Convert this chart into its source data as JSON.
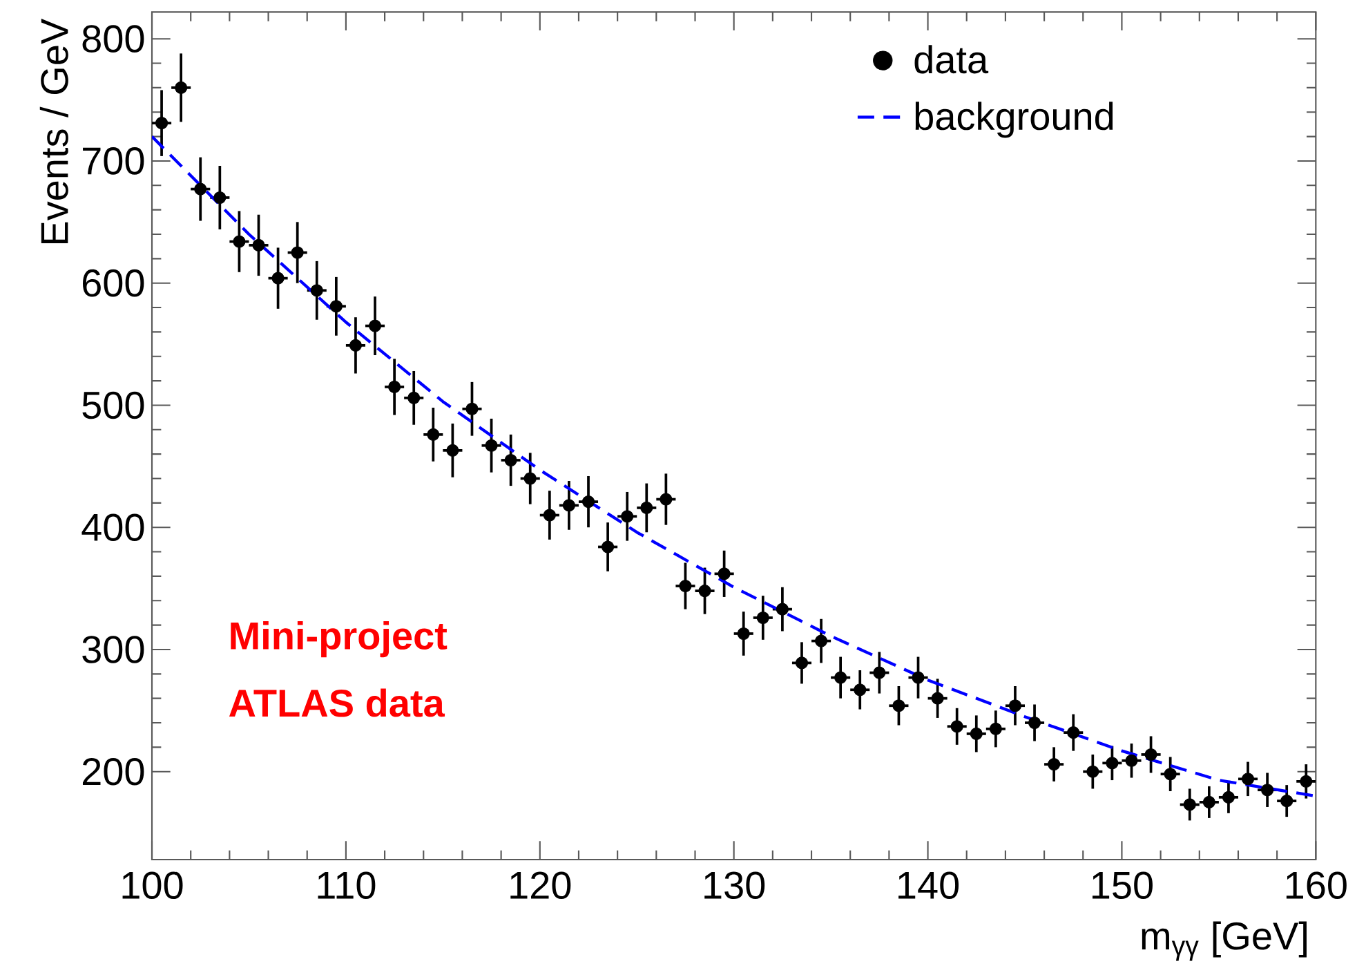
{
  "chart_data": {
    "type": "scatter",
    "xlabel": "m$_{γγ}$ [GeV]",
    "ylabel": "Events / GeV",
    "annotations": [
      "Mini-project",
      "ATLAS data"
    ],
    "xlim": [
      100,
      160
    ],
    "xticks": [
      100,
      110,
      120,
      130,
      140,
      150,
      160
    ],
    "ylim": [
      128,
      822
    ],
    "yticks": [
      200,
      300,
      400,
      500,
      600,
      700,
      800
    ],
    "grid": false,
    "legend": "top right",
    "series": [
      {
        "name": "data",
        "color": "#000000",
        "marker": "circle",
        "x": [
          100.5,
          101.5,
          102.5,
          103.5,
          104.5,
          105.5,
          106.5,
          107.5,
          108.5,
          109.5,
          110.5,
          111.5,
          112.5,
          113.5,
          114.5,
          115.5,
          116.5,
          117.5,
          118.5,
          119.5,
          120.5,
          121.5,
          122.5,
          123.5,
          124.5,
          125.5,
          126.5,
          127.5,
          128.5,
          129.5,
          130.5,
          131.5,
          132.5,
          133.5,
          134.5,
          135.5,
          136.5,
          137.5,
          138.5,
          139.5,
          140.5,
          141.5,
          142.5,
          143.5,
          144.5,
          145.5,
          146.5,
          147.5,
          148.5,
          149.5,
          150.5,
          151.5,
          152.5,
          153.5,
          154.5,
          155.5,
          156.5,
          157.5,
          158.5,
          159.5
        ],
        "values": [
          731,
          760,
          677,
          670,
          634,
          631,
          604,
          625,
          594,
          581,
          549,
          565,
          515,
          506,
          476,
          463,
          497,
          467,
          455,
          440,
          410,
          418,
          421,
          384,
          409,
          416,
          423,
          352,
          348,
          362,
          313,
          326,
          333,
          289,
          307,
          277,
          267,
          281,
          254,
          277,
          260,
          237,
          231,
          235,
          254,
          240,
          206,
          232,
          200,
          207,
          209,
          214,
          198,
          173,
          175,
          179,
          194,
          185,
          176,
          192
        ],
        "errors": [
          27,
          28,
          26,
          26,
          25,
          25,
          25,
          25,
          24,
          24,
          23,
          24,
          23,
          22,
          22,
          22,
          22,
          22,
          21,
          21,
          20,
          20,
          21,
          20,
          20,
          20,
          21,
          19,
          19,
          19,
          18,
          18,
          18,
          17,
          18,
          17,
          16,
          17,
          16,
          17,
          16,
          15,
          15,
          15,
          16,
          15,
          14,
          15,
          14,
          14,
          14,
          15,
          14,
          13,
          13,
          13,
          14,
          14,
          13,
          14
        ],
        "xerrors": [
          0.5,
          0.5,
          0.5,
          0.5,
          0.5,
          0.5,
          0.5,
          0.5,
          0.5,
          0.5,
          0.5,
          0.5,
          0.5,
          0.5,
          0.5,
          0.5,
          0.5,
          0.5,
          0.5,
          0.5,
          0.5,
          0.5,
          0.5,
          0.5,
          0.5,
          0.5,
          0.5,
          0.5,
          0.5,
          0.5,
          0.5,
          0.5,
          0.5,
          0.5,
          0.5,
          0.5,
          0.5,
          0.5,
          0.5,
          0.5,
          0.5,
          0.5,
          0.5,
          0.5,
          0.5,
          0.5,
          0.5,
          0.5,
          0.5,
          0.5,
          0.5,
          0.5,
          0.5,
          0.5,
          0.5,
          0.5,
          0.5,
          0.5,
          0.5,
          0.5
        ]
      },
      {
        "name": "background",
        "type": "line",
        "color": "#0000ff",
        "marker": "none",
        "line_style": "dashed",
        "x": [
          100,
          105,
          110,
          115,
          120,
          125,
          130,
          135,
          140,
          145,
          150,
          155,
          160
        ],
        "values": [
          720,
          640,
          568,
          503,
          447,
          396,
          351,
          311,
          275,
          245,
          217,
          193,
          180
        ]
      }
    ]
  }
}
